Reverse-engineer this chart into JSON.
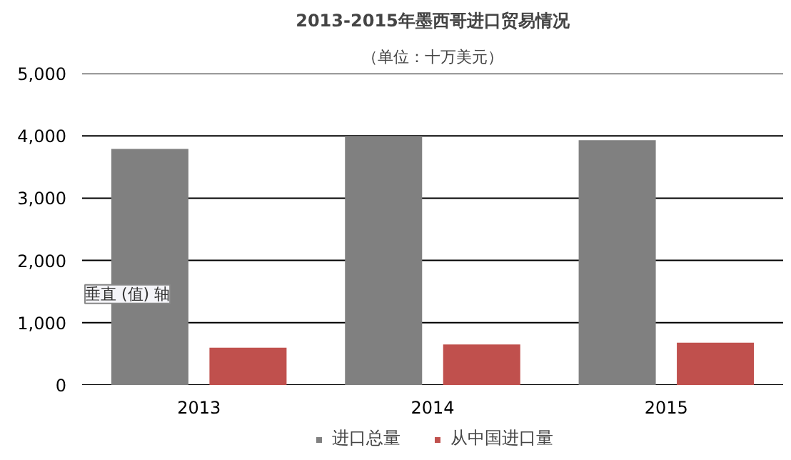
{
  "chart_data": {
    "type": "bar",
    "title": "2013-2015年墨西哥进口贸易情况",
    "subtitle": "（单位：十万美元）",
    "categories": [
      "2013",
      "2014",
      "2015"
    ],
    "series": [
      {
        "name": "进口总量",
        "color": "#808080",
        "values": [
          3790,
          3980,
          3930
        ]
      },
      {
        "name": "从中国进口量",
        "color": "#c0504d",
        "values": [
          600,
          650,
          680
        ]
      }
    ],
    "ylim": [
      0,
      5000
    ],
    "yticks": [
      {
        "value": 0,
        "label": "0"
      },
      {
        "value": 1000,
        "label": "1,000"
      },
      {
        "value": 2000,
        "label": "2,000"
      },
      {
        "value": 3000,
        "label": "3,000"
      },
      {
        "value": 4000,
        "label": "4,000"
      },
      {
        "value": 5000,
        "label": "5,000"
      }
    ],
    "grid": "y",
    "legend": "bottom",
    "annotations": [
      "垂直 (值) 轴"
    ]
  }
}
